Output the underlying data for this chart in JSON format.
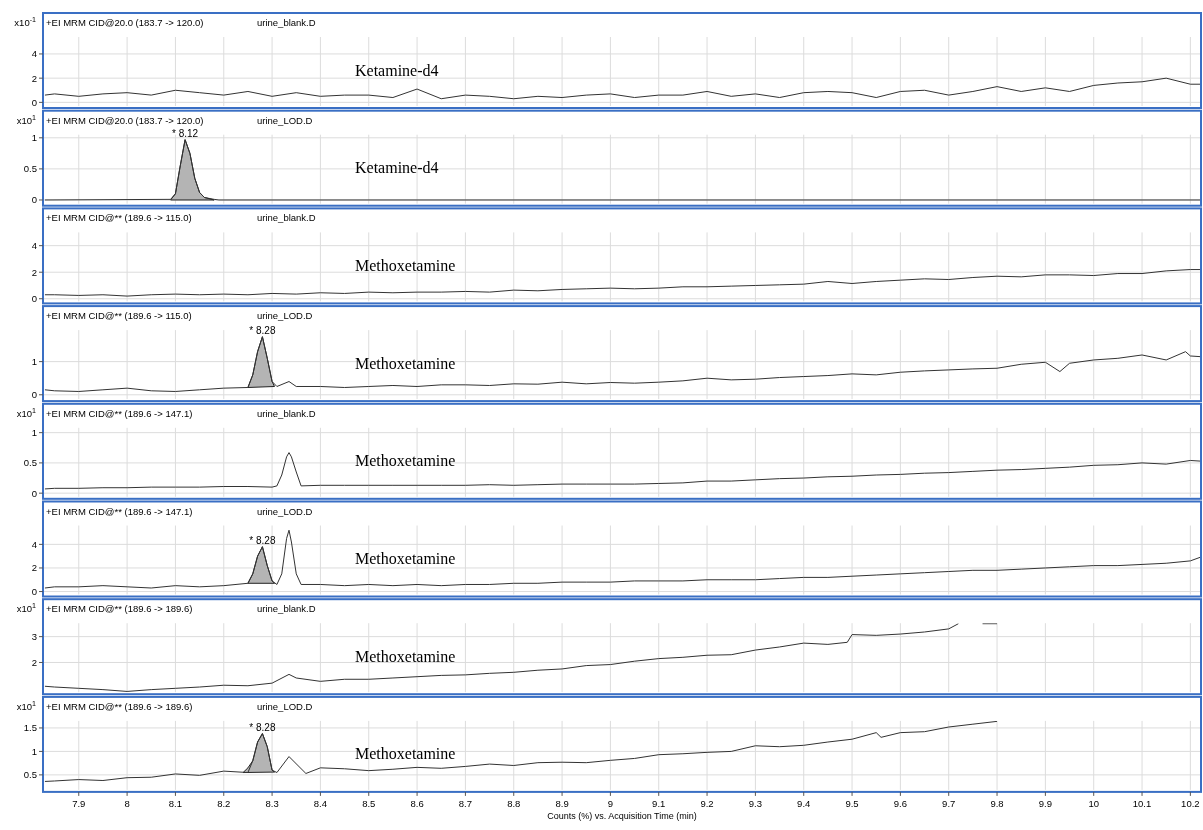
{
  "chart_data": [
    {
      "type": "line",
      "title": "+EI MRM CID@20.0 (183.7 -> 120.0)",
      "subtitle": "urine_blank.D",
      "ylabel": "x10$^{-1}$",
      "annotations": [
        "Ketamine-d4"
      ],
      "xlim": [
        7.826,
        10.222
      ],
      "xticks": [
        7.9,
        8,
        8.1,
        8.2,
        8.3,
        8.4,
        8.5,
        8.6,
        8.7,
        8.8,
        8.9,
        9,
        9.1,
        9.2,
        9.3,
        9.4,
        9.5,
        9.6,
        9.7,
        9.8,
        9.9,
        10,
        10.1,
        10.2
      ],
      "ylim": [
        -0.3,
        5.4
      ],
      "yticks": [
        0,
        2,
        4
      ],
      "grid": true,
      "tick_labels": "y",
      "series": [
        {
          "type": "line",
          "color": "#333333",
          "x": [
            7.83,
            7.85,
            7.9,
            7.95,
            8.0,
            8.05,
            8.1,
            8.15,
            8.2,
            8.25,
            8.3,
            8.35,
            8.4,
            8.45,
            8.5,
            8.55,
            8.6,
            8.65,
            8.7,
            8.75,
            8.8,
            8.85,
            8.9,
            8.95,
            9.0,
            9.05,
            9.1,
            9.15,
            9.2,
            9.25,
            9.3,
            9.35,
            9.4,
            9.45,
            9.5,
            9.55,
            9.6,
            9.65,
            9.7,
            9.75,
            9.8,
            9.85,
            9.9,
            9.95,
            10.0,
            10.05,
            10.1,
            10.15,
            10.2,
            10.22
          ],
          "values": [
            0.6,
            0.7,
            0.5,
            0.7,
            0.8,
            0.6,
            1.0,
            0.8,
            0.6,
            0.9,
            0.5,
            0.8,
            0.5,
            0.6,
            0.6,
            0.4,
            1.1,
            0.3,
            0.6,
            0.5,
            0.3,
            0.5,
            0.4,
            0.6,
            0.7,
            0.4,
            0.6,
            0.6,
            0.9,
            0.5,
            0.7,
            0.4,
            0.8,
            0.9,
            0.8,
            0.4,
            0.9,
            1.0,
            0.6,
            0.9,
            1.3,
            0.9,
            1.2,
            0.9,
            1.4,
            1.6,
            1.7,
            2.0,
            1.5,
            1.5
          ]
        }
      ]
    },
    {
      "type": "line",
      "title": "+EI MRM CID@20.0 (183.7 -> 120.0)",
      "subtitle": "urine_LOD.D",
      "ylabel": "x10$^{1}$",
      "annotations": [
        "Ketamine-d4",
        "* 8.12"
      ],
      "xlim": [
        7.826,
        10.222
      ],
      "xticks": [
        7.9,
        8,
        8.1,
        8.2,
        8.3,
        8.4,
        8.5,
        8.6,
        8.7,
        8.8,
        8.9,
        9,
        9.1,
        9.2,
        9.3,
        9.4,
        9.5,
        9.6,
        9.7,
        9.8,
        9.9,
        10,
        10.1,
        10.2
      ],
      "ylim": [
        -0.06,
        1.05
      ],
      "yticks": [
        0,
        0.5,
        1
      ],
      "grid": true,
      "tick_labels": "y",
      "series": [
        {
          "type": "area",
          "color": "#b4b4b4",
          "x": [
            8.09,
            8.1,
            8.11,
            8.12,
            8.13,
            8.14,
            8.15,
            8.16,
            8.18
          ],
          "values": [
            0,
            0.1,
            0.55,
            0.97,
            0.75,
            0.35,
            0.12,
            0.04,
            0
          ]
        },
        {
          "type": "line",
          "color": "#333333",
          "x": [
            7.83,
            8.09,
            8.1,
            8.11,
            8.12,
            8.13,
            8.14,
            8.15,
            8.16,
            8.18,
            8.19,
            10.22
          ],
          "values": [
            0,
            0.01,
            0.1,
            0.55,
            0.97,
            0.75,
            0.35,
            0.12,
            0.04,
            0.01,
            0,
            0
          ]
        }
      ]
    },
    {
      "type": "line",
      "title": "+EI MRM CID@** (189.6 -> 115.0)",
      "subtitle": "urine_blank.D",
      "annotations": [
        "Methoxetamine"
      ],
      "xlim": [
        7.826,
        10.222
      ],
      "xticks": [
        7.9,
        8,
        8.1,
        8.2,
        8.3,
        8.4,
        8.5,
        8.6,
        8.7,
        8.8,
        8.9,
        9,
        9.1,
        9.2,
        9.3,
        9.4,
        9.5,
        9.6,
        9.7,
        9.8,
        9.9,
        10,
        10.1,
        10.2
      ],
      "ylim": [
        -0.2,
        5.0
      ],
      "yticks": [
        0,
        2,
        4
      ],
      "grid": true,
      "tick_labels": "y",
      "series": [
        {
          "type": "line",
          "color": "#333333",
          "x": [
            7.83,
            7.85,
            7.9,
            7.95,
            8.0,
            8.05,
            8.1,
            8.15,
            8.2,
            8.25,
            8.3,
            8.35,
            8.4,
            8.45,
            8.5,
            8.55,
            8.6,
            8.65,
            8.7,
            8.75,
            8.8,
            8.85,
            8.9,
            8.95,
            9.0,
            9.05,
            9.1,
            9.15,
            9.2,
            9.25,
            9.3,
            9.35,
            9.4,
            9.45,
            9.5,
            9.55,
            9.6,
            9.65,
            9.7,
            9.75,
            9.8,
            9.85,
            9.9,
            9.95,
            10.0,
            10.05,
            10.1,
            10.15,
            10.2,
            10.22
          ],
          "values": [
            0.3,
            0.3,
            0.25,
            0.3,
            0.2,
            0.3,
            0.35,
            0.3,
            0.35,
            0.3,
            0.4,
            0.35,
            0.45,
            0.4,
            0.5,
            0.45,
            0.5,
            0.5,
            0.55,
            0.5,
            0.65,
            0.6,
            0.7,
            0.75,
            0.8,
            0.75,
            0.8,
            0.9,
            0.9,
            0.95,
            1.0,
            1.05,
            1.1,
            1.3,
            1.15,
            1.3,
            1.4,
            1.5,
            1.45,
            1.6,
            1.7,
            1.65,
            1.8,
            1.8,
            1.75,
            1.9,
            1.9,
            2.1,
            2.2,
            2.2
          ]
        }
      ]
    },
    {
      "type": "line",
      "title": "+EI MRM CID@** (189.6 -> 115.0)",
      "subtitle": "urine_LOD.D",
      "annotations": [
        "Methoxetamine",
        "* 8.28"
      ],
      "xlim": [
        7.826,
        10.222
      ],
      "xticks": [
        7.9,
        8,
        8.1,
        8.2,
        8.3,
        8.4,
        8.5,
        8.6,
        8.7,
        8.8,
        8.9,
        9,
        9.1,
        9.2,
        9.3,
        9.4,
        9.5,
        9.6,
        9.7,
        9.8,
        9.9,
        10,
        10.1,
        10.2
      ],
      "ylim": [
        -0.13,
        1.95
      ],
      "yticks": [
        0,
        1
      ],
      "grid": true,
      "tick_labels": "y",
      "series": [
        {
          "type": "area",
          "color": "#b4b4b4",
          "x": [
            8.25,
            8.26,
            8.27,
            8.28,
            8.29,
            8.3,
            8.305
          ],
          "values": [
            0.22,
            0.6,
            1.3,
            1.75,
            1.1,
            0.4,
            0.25
          ]
        },
        {
          "type": "line",
          "color": "#333333",
          "x": [
            7.83,
            7.85,
            7.9,
            7.95,
            8.0,
            8.05,
            8.1,
            8.15,
            8.2,
            8.25,
            8.26,
            8.27,
            8.28,
            8.29,
            8.3,
            8.31,
            8.335,
            8.35,
            8.4,
            8.45,
            8.5,
            8.55,
            8.6,
            8.65,
            8.7,
            8.75,
            8.8,
            8.85,
            8.9,
            8.95,
            9.0,
            9.05,
            9.1,
            9.15,
            9.2,
            9.25,
            9.3,
            9.35,
            9.4,
            9.45,
            9.5,
            9.55,
            9.6,
            9.65,
            9.7,
            9.75,
            9.8,
            9.85,
            9.9,
            9.93,
            9.95,
            10.0,
            10.05,
            10.1,
            10.15,
            10.19,
            10.2,
            10.22
          ],
          "values": [
            0.15,
            0.12,
            0.1,
            0.15,
            0.2,
            0.12,
            0.1,
            0.15,
            0.2,
            0.22,
            0.6,
            1.3,
            1.75,
            1.1,
            0.4,
            0.25,
            0.4,
            0.25,
            0.25,
            0.22,
            0.25,
            0.28,
            0.25,
            0.3,
            0.3,
            0.28,
            0.33,
            0.32,
            0.38,
            0.33,
            0.37,
            0.35,
            0.38,
            0.42,
            0.5,
            0.45,
            0.47,
            0.52,
            0.55,
            0.58,
            0.63,
            0.6,
            0.68,
            0.72,
            0.75,
            0.78,
            0.8,
            0.92,
            0.98,
            0.7,
            0.95,
            1.05,
            1.1,
            1.2,
            1.05,
            1.3,
            1.17,
            1.15
          ]
        }
      ]
    },
    {
      "type": "line",
      "title": "+EI MRM CID@** (189.6 -> 147.1)",
      "subtitle": "urine_blank.D",
      "ylabel": "x10$^{1}$",
      "annotations": [
        "Methoxetamine"
      ],
      "xlim": [
        7.826,
        10.222
      ],
      "xticks": [
        7.9,
        8,
        8.1,
        8.2,
        8.3,
        8.4,
        8.5,
        8.6,
        8.7,
        8.8,
        8.9,
        9,
        9.1,
        9.2,
        9.3,
        9.4,
        9.5,
        9.6,
        9.7,
        9.8,
        9.9,
        10,
        10.1,
        10.2
      ],
      "ylim": [
        -0.06,
        1.08
      ],
      "yticks": [
        0,
        0.5,
        1
      ],
      "grid": true,
      "tick_labels": "y",
      "series": [
        {
          "type": "line",
          "color": "#333333",
          "x": [
            7.83,
            7.85,
            7.9,
            7.95,
            8.0,
            8.05,
            8.1,
            8.15,
            8.2,
            8.25,
            8.3,
            8.31,
            8.32,
            8.33,
            8.335,
            8.34,
            8.35,
            8.36,
            8.4,
            8.45,
            8.5,
            8.55,
            8.6,
            8.65,
            8.7,
            8.75,
            8.8,
            8.85,
            8.9,
            8.95,
            9.0,
            9.05,
            9.1,
            9.15,
            9.2,
            9.25,
            9.3,
            9.35,
            9.4,
            9.45,
            9.5,
            9.55,
            9.6,
            9.65,
            9.7,
            9.75,
            9.8,
            9.85,
            9.9,
            9.95,
            10.0,
            10.05,
            10.1,
            10.15,
            10.2,
            10.22
          ],
          "values": [
            0.07,
            0.08,
            0.08,
            0.09,
            0.09,
            0.1,
            0.1,
            0.1,
            0.11,
            0.11,
            0.1,
            0.12,
            0.3,
            0.6,
            0.67,
            0.6,
            0.35,
            0.12,
            0.13,
            0.13,
            0.13,
            0.13,
            0.13,
            0.13,
            0.13,
            0.14,
            0.13,
            0.14,
            0.15,
            0.15,
            0.15,
            0.15,
            0.16,
            0.17,
            0.2,
            0.2,
            0.22,
            0.24,
            0.25,
            0.27,
            0.28,
            0.3,
            0.31,
            0.33,
            0.34,
            0.36,
            0.38,
            0.39,
            0.41,
            0.43,
            0.46,
            0.47,
            0.5,
            0.48,
            0.54,
            0.53
          ]
        }
      ]
    },
    {
      "type": "line",
      "title": "+EI MRM CID@** (189.6 -> 147.1)",
      "subtitle": "urine_LOD.D",
      "annotations": [
        "Methoxetamine",
        "* 8.28"
      ],
      "xlim": [
        7.826,
        10.222
      ],
      "xticks": [
        7.9,
        8,
        8.1,
        8.2,
        8.3,
        8.4,
        8.5,
        8.6,
        8.7,
        8.8,
        8.9,
        9,
        9.1,
        9.2,
        9.3,
        9.4,
        9.5,
        9.6,
        9.7,
        9.8,
        9.9,
        10,
        10.1,
        10.2
      ],
      "ylim": [
        -0.25,
        5.6
      ],
      "yticks": [
        0,
        2,
        4
      ],
      "grid": true,
      "tick_labels": "y",
      "series": [
        {
          "type": "area",
          "color": "#b4b4b4",
          "x": [
            8.25,
            8.26,
            8.27,
            8.28,
            8.29,
            8.3,
            8.305
          ],
          "values": [
            0.7,
            1.5,
            3.0,
            3.8,
            2.2,
            0.9,
            0.7
          ]
        },
        {
          "type": "line",
          "color": "#333333",
          "x": [
            7.83,
            7.85,
            7.9,
            7.95,
            8.0,
            8.05,
            8.1,
            8.15,
            8.2,
            8.25,
            8.26,
            8.27,
            8.28,
            8.29,
            8.3,
            8.31,
            8.32,
            8.33,
            8.335,
            8.34,
            8.35,
            8.36,
            8.4,
            8.45,
            8.5,
            8.55,
            8.6,
            8.65,
            8.7,
            8.75,
            8.8,
            8.85,
            8.9,
            8.95,
            9.0,
            9.05,
            9.1,
            9.15,
            9.2,
            9.25,
            9.3,
            9.35,
            9.4,
            9.45,
            9.5,
            9.55,
            9.6,
            9.65,
            9.7,
            9.75,
            9.8,
            9.85,
            9.9,
            9.95,
            10.0,
            10.05,
            10.1,
            10.15,
            10.2,
            10.22
          ],
          "values": [
            0.3,
            0.4,
            0.4,
            0.5,
            0.4,
            0.3,
            0.5,
            0.4,
            0.5,
            0.7,
            1.5,
            3.0,
            3.8,
            2.2,
            0.9,
            0.6,
            1.5,
            4.5,
            5.2,
            4.2,
            1.5,
            0.6,
            0.6,
            0.5,
            0.6,
            0.5,
            0.6,
            0.5,
            0.6,
            0.6,
            0.7,
            0.7,
            0.8,
            0.8,
            0.8,
            0.9,
            0.9,
            0.9,
            1.0,
            1.0,
            1.0,
            1.1,
            1.2,
            1.2,
            1.3,
            1.4,
            1.5,
            1.6,
            1.7,
            1.8,
            1.8,
            1.9,
            2.0,
            2.1,
            2.2,
            2.2,
            2.3,
            2.4,
            2.6,
            2.9
          ]
        }
      ]
    },
    {
      "type": "line",
      "title": "+EI MRM CID@** (189.6 -> 189.6)",
      "subtitle": "urine_blank.D",
      "ylabel": "x10$^{1}$",
      "annotations": [
        "Methoxetamine"
      ],
      "xlim": [
        7.826,
        10.222
      ],
      "xticks": [
        7.9,
        8,
        8.1,
        8.2,
        8.3,
        8.4,
        8.5,
        8.6,
        8.7,
        8.8,
        8.9,
        9,
        9.1,
        9.2,
        9.3,
        9.4,
        9.5,
        9.6,
        9.7,
        9.8,
        9.9,
        10,
        10.1,
        10.2
      ],
      "ylim": [
        0.85,
        3.52
      ],
      "yticks": [
        2,
        3
      ],
      "grid": true,
      "tick_labels": "y",
      "series": [
        {
          "type": "line",
          "color": "#333333",
          "x": [
            7.83,
            7.85,
            7.9,
            7.95,
            8.0,
            8.05,
            8.1,
            8.15,
            8.2,
            8.25,
            8.3,
            8.335,
            8.35,
            8.4,
            8.45,
            8.5,
            8.55,
            8.6,
            8.65,
            8.7,
            8.75,
            8.8,
            8.85,
            8.9,
            8.95,
            9.0,
            9.05,
            9.1,
            9.15,
            9.2,
            9.25,
            9.3,
            9.35,
            9.4,
            9.45,
            9.49,
            9.5,
            9.55,
            9.6,
            9.65,
            9.7,
            9.72,
            9.75,
            9.77,
            9.8
          ],
          "values": [
            1.08,
            1.05,
            1.0,
            0.95,
            0.88,
            0.95,
            1.0,
            1.05,
            1.12,
            1.1,
            1.2,
            1.54,
            1.4,
            1.27,
            1.35,
            1.35,
            1.4,
            1.45,
            1.5,
            1.52,
            1.58,
            1.62,
            1.7,
            1.75,
            1.88,
            1.92,
            2.05,
            2.15,
            2.2,
            2.28,
            2.3,
            2.48,
            2.6,
            2.75,
            2.7,
            2.78,
            3.08,
            3.05,
            3.1,
            3.18,
            3.3,
            3.5,
            null,
            3.5,
            3.5
          ]
        }
      ]
    },
    {
      "type": "line",
      "title": "+EI MRM CID@** (189.6 -> 189.6)",
      "subtitle": "urine_LOD.D",
      "ylabel": "x10$^{1}$",
      "xlabel": "Counts (%) vs. Acquisition Time (min)",
      "annotations": [
        "Methoxetamine",
        "* 8.28"
      ],
      "xlim": [
        7.826,
        10.222
      ],
      "xticks": [
        7.9,
        8,
        8.1,
        8.2,
        8.3,
        8.4,
        8.5,
        8.6,
        8.7,
        8.8,
        8.9,
        9,
        9.1,
        9.2,
        9.3,
        9.4,
        9.5,
        9.6,
        9.7,
        9.8,
        9.9,
        10,
        10.1,
        10.2
      ],
      "ylim": [
        0.18,
        1.65
      ],
      "yticks": [
        0.5,
        1,
        1.5
      ],
      "grid": true,
      "series": [
        {
          "type": "area",
          "color": "#b4b4b4",
          "x": [
            8.24,
            8.25,
            8.26,
            8.27,
            8.28,
            8.29,
            8.3,
            8.305
          ],
          "values": [
            0.55,
            0.65,
            0.8,
            1.2,
            1.38,
            1.1,
            0.6,
            0.56
          ]
        },
        {
          "type": "line",
          "color": "#333333",
          "x": [
            7.83,
            7.85,
            7.9,
            7.95,
            8.0,
            8.05,
            8.1,
            8.15,
            8.2,
            8.25,
            8.26,
            8.27,
            8.28,
            8.29,
            8.3,
            8.31,
            8.335,
            8.37,
            8.4,
            8.45,
            8.5,
            8.55,
            8.6,
            8.65,
            8.7,
            8.75,
            8.8,
            8.85,
            8.9,
            8.95,
            9.0,
            9.05,
            9.1,
            9.15,
            9.2,
            9.25,
            9.3,
            9.35,
            9.4,
            9.45,
            9.5,
            9.55,
            9.56,
            9.6,
            9.65,
            9.7,
            9.75,
            9.8
          ],
          "values": [
            0.36,
            0.37,
            0.4,
            0.38,
            0.44,
            0.45,
            0.52,
            0.49,
            0.58,
            0.55,
            0.8,
            1.2,
            1.38,
            1.1,
            0.6,
            0.55,
            0.89,
            0.53,
            0.65,
            0.63,
            0.59,
            0.62,
            0.66,
            0.64,
            0.68,
            0.73,
            0.7,
            0.76,
            0.77,
            0.76,
            0.81,
            0.85,
            0.93,
            0.95,
            0.98,
            1.0,
            1.12,
            1.1,
            1.13,
            1.2,
            1.26,
            1.4,
            1.3,
            1.4,
            1.42,
            1.52,
            1.58,
            1.64
          ]
        }
      ]
    }
  ]
}
